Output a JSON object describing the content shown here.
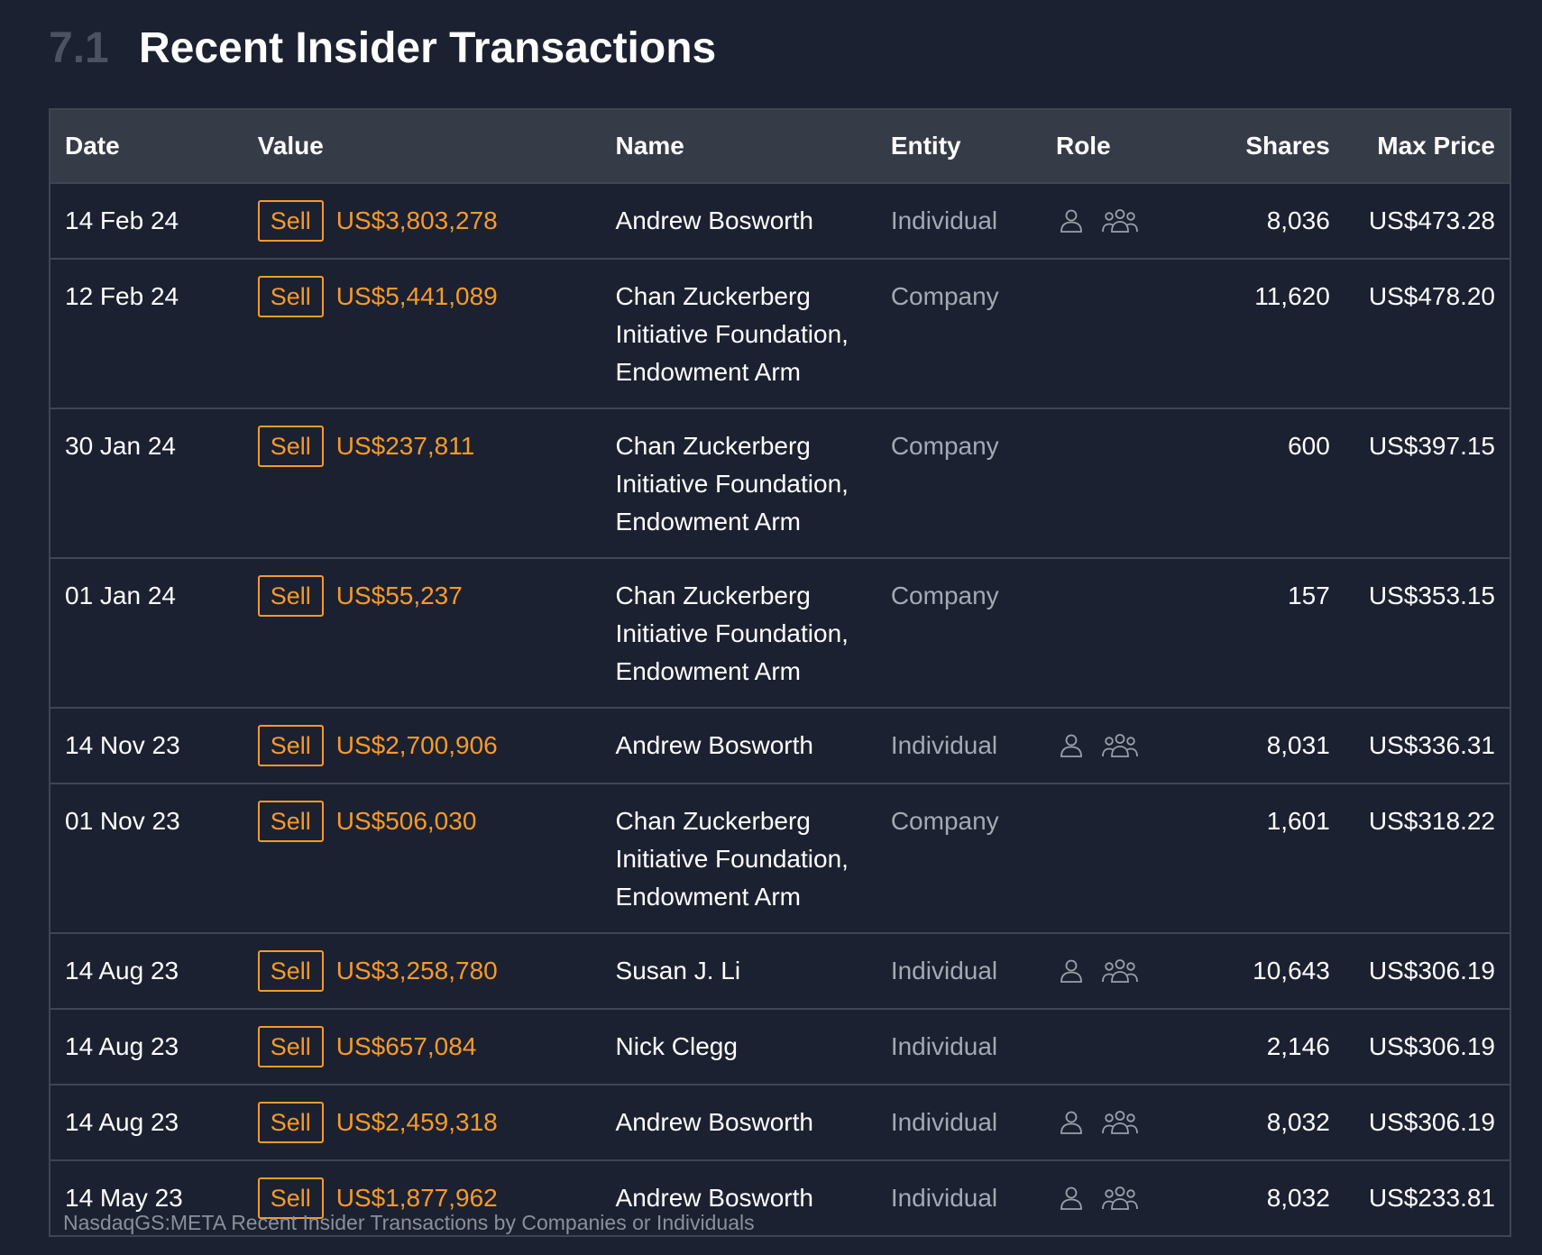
{
  "section": {
    "number": "7.1",
    "title": "Recent Insider Transactions"
  },
  "columns": {
    "date": "Date",
    "value": "Value",
    "name": "Name",
    "entity": "Entity",
    "role": "Role",
    "shares": "Shares",
    "max_price": "Max Price"
  },
  "rows": [
    {
      "date": "14 Feb 24",
      "type": "Sell",
      "value": "US$3,803,278",
      "name": "Andrew Bosworth",
      "entity": "Individual",
      "role_icons": [
        "person-icon",
        "group-icon"
      ],
      "shares": "8,036",
      "max_price": "US$473.28"
    },
    {
      "date": "12 Feb 24",
      "type": "Sell",
      "value": "US$5,441,089",
      "name": "Chan Zuckerberg Initiative Foundation, Endowment Arm",
      "entity": "Company",
      "role_icons": [],
      "shares": "11,620",
      "max_price": "US$478.20"
    },
    {
      "date": "30 Jan 24",
      "type": "Sell",
      "value": "US$237,811",
      "name": "Chan Zuckerberg Initiative Foundation, Endowment Arm",
      "entity": "Company",
      "role_icons": [],
      "shares": "600",
      "max_price": "US$397.15"
    },
    {
      "date": "01 Jan 24",
      "type": "Sell",
      "value": "US$55,237",
      "name": "Chan Zuckerberg Initiative Foundation, Endowment Arm",
      "entity": "Company",
      "role_icons": [],
      "shares": "157",
      "max_price": "US$353.15"
    },
    {
      "date": "14 Nov 23",
      "type": "Sell",
      "value": "US$2,700,906",
      "name": "Andrew Bosworth",
      "entity": "Individual",
      "role_icons": [
        "person-icon",
        "group-icon"
      ],
      "shares": "8,031",
      "max_price": "US$336.31"
    },
    {
      "date": "01 Nov 23",
      "type": "Sell",
      "value": "US$506,030",
      "name": "Chan Zuckerberg Initiative Foundation, Endowment Arm",
      "entity": "Company",
      "role_icons": [],
      "shares": "1,601",
      "max_price": "US$318.22"
    },
    {
      "date": "14 Aug 23",
      "type": "Sell",
      "value": "US$3,258,780",
      "name": "Susan J. Li",
      "entity": "Individual",
      "role_icons": [
        "person-icon",
        "group-icon"
      ],
      "shares": "10,643",
      "max_price": "US$306.19"
    },
    {
      "date": "14 Aug 23",
      "type": "Sell",
      "value": "US$657,084",
      "name": "Nick Clegg",
      "entity": "Individual",
      "role_icons": [],
      "shares": "2,146",
      "max_price": "US$306.19"
    },
    {
      "date": "14 Aug 23",
      "type": "Sell",
      "value": "US$2,459,318",
      "name": "Andrew Bosworth",
      "entity": "Individual",
      "role_icons": [
        "person-icon",
        "group-icon"
      ],
      "shares": "8,032",
      "max_price": "US$306.19"
    },
    {
      "date": "14 May 23",
      "type": "Sell",
      "value": "US$1,877,962",
      "name": "Andrew Bosworth",
      "entity": "Individual",
      "role_icons": [
        "person-icon",
        "group-icon"
      ],
      "shares": "8,032",
      "max_price": "US$233.81"
    }
  ],
  "caption": "NasdaqGS:META Recent Insider Transactions by Companies or Individuals",
  "colors": {
    "background": "#1b2130",
    "header_bg": "#363c47",
    "accent_orange": "#f79a2a",
    "muted_text": "#a4a9b3"
  }
}
